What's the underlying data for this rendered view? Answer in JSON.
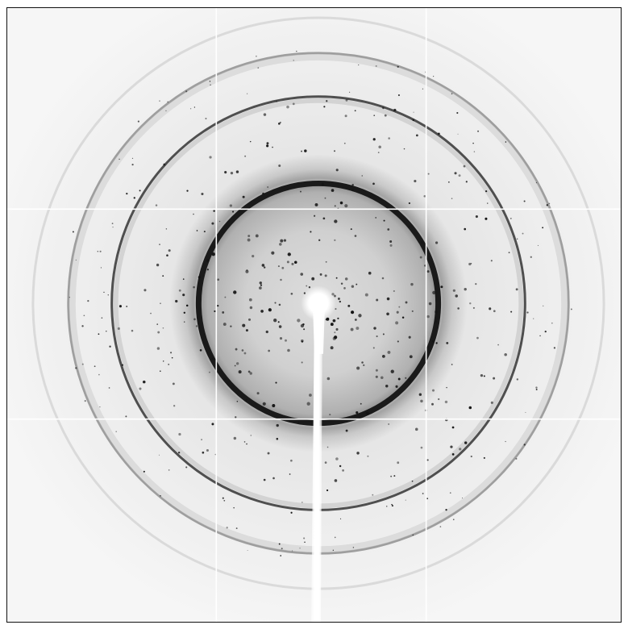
{
  "image": {
    "kind": "x-ray diffraction pattern",
    "background_color": "#f4f4f4",
    "ring_color": "#1a1a1a",
    "spot_color": "#141414",
    "beamstop_color": "#ffffff",
    "panel_gap_color": "#ffffff",
    "frame_color": "#111111"
  }
}
